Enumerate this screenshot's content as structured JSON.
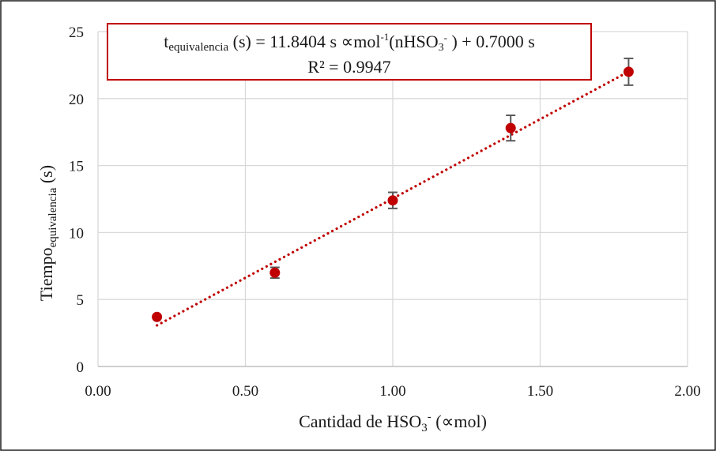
{
  "chart_data": {
    "type": "scatter",
    "xlabel": {
      "main": "Cantidad de HSO",
      "sub": "3",
      "sup": "-",
      "unit": "(∝mol)"
    },
    "ylabel": {
      "main": "Tiempo",
      "sub": "equivalencia",
      "unit": "(s)"
    },
    "xlim": [
      0,
      2
    ],
    "ylim": [
      0,
      25
    ],
    "xticks": [
      "0.00",
      "0.50",
      "1.00",
      "1.50",
      "2.00"
    ],
    "yticks": [
      "0",
      "5",
      "10",
      "15",
      "20",
      "25"
    ],
    "grid": true,
    "series": [
      {
        "x": [
          0.2,
          0.6,
          1.0,
          1.4,
          1.8
        ],
        "y": [
          3.7,
          7.0,
          12.4,
          17.8,
          22.0
        ],
        "error": [
          0.0,
          0.4,
          0.6,
          0.95,
          1.0
        ],
        "color": "#c00000"
      }
    ],
    "trendline": {
      "style": "dotted",
      "color": "#c00000",
      "x_range": [
        0.2,
        1.8
      ],
      "slope": 11.8404,
      "intercept": 0.7
    },
    "equation": {
      "t": "t",
      "t_sub": "equivalencia",
      "part1": " (s) = 11.8404 s ∝mol",
      "part1_sup": "-1",
      "part2": "(nHSO",
      "part2_sub": "3",
      "part2_sup": "-",
      "part3": " ) + 0.7000 s",
      "r2": "R² = 0.9947",
      "box_color": "#c00000"
    }
  }
}
